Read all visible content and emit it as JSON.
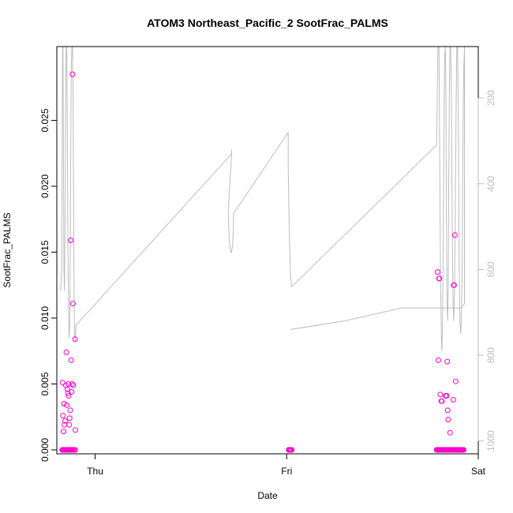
{
  "chart_data": {
    "type": "scatter",
    "title": "ATOM3 Northeast_Pacific_2 SootFrac_PALMS",
    "xlabel": "Date",
    "ylabel": "SootFrac_PALMS",
    "xlim": [
      -0.2,
      2.0
    ],
    "ylim": [
      -0.0003,
      0.0306
    ],
    "x_ticks": [
      {
        "value": 0,
        "label": "Thu"
      },
      {
        "value": 1,
        "label": "Fri"
      },
      {
        "value": 2,
        "label": "Sat"
      }
    ],
    "y_ticks": [
      {
        "value": 0.0,
        "label": "0.000"
      },
      {
        "value": 0.005,
        "label": "0.005"
      },
      {
        "value": 0.01,
        "label": "0.010"
      },
      {
        "value": 0.015,
        "label": "0.015"
      },
      {
        "value": 0.02,
        "label": "0.020"
      },
      {
        "value": 0.025,
        "label": "0.025"
      }
    ],
    "secondary_axis": {
      "side": "right",
      "reversed": true,
      "lim": [
        80,
        1030
      ],
      "color": "#bdbdbd",
      "ticks": [
        {
          "value": 200,
          "label": "200"
        },
        {
          "value": 400,
          "label": "400"
        },
        {
          "value": 600,
          "label": "600"
        },
        {
          "value": 800,
          "label": "800"
        },
        {
          "value": 1000,
          "label": "1000"
        }
      ]
    },
    "series": [
      {
        "kind": "points",
        "color": "#ff00cc",
        "points": [
          [
            -0.17,
            0.0051
          ],
          [
            -0.168,
            0.0026
          ],
          [
            -0.165,
            0.0014
          ],
          [
            -0.162,
            0.0035
          ],
          [
            -0.16,
            0.0019
          ],
          [
            -0.157,
            0.0022
          ],
          [
            -0.153,
            0.0049
          ],
          [
            -0.15,
            0.0074
          ],
          [
            -0.148,
            0.0034
          ],
          [
            -0.145,
            0.0046
          ],
          [
            -0.142,
            0.0043
          ],
          [
            -0.14,
            0.005
          ],
          [
            -0.138,
            0.0041
          ],
          [
            -0.135,
            0.0019
          ],
          [
            -0.133,
            0.0024
          ],
          [
            -0.13,
            0.003
          ],
          [
            -0.127,
            0.0159
          ],
          [
            -0.125,
            0.0068
          ],
          [
            -0.123,
            0.0044
          ],
          [
            -0.12,
            0.005
          ],
          [
            -0.118,
            0.0285
          ],
          [
            -0.116,
            0.0111
          ],
          [
            -0.114,
            0.0049
          ],
          [
            -0.105,
            0.0084
          ],
          [
            -0.103,
            0.0015
          ],
          [
            -0.172,
            0.0
          ],
          [
            -0.168,
            0.0
          ],
          [
            -0.164,
            0.0
          ],
          [
            -0.16,
            0.0
          ],
          [
            -0.156,
            0.0
          ],
          [
            -0.152,
            0.0
          ],
          [
            -0.148,
            0.0
          ],
          [
            -0.144,
            0.0
          ],
          [
            -0.14,
            0.0
          ],
          [
            -0.136,
            0.0
          ],
          [
            -0.13,
            0.0
          ],
          [
            -0.126,
            0.0
          ],
          [
            -0.122,
            0.0
          ],
          [
            -0.118,
            0.0
          ],
          [
            -0.114,
            0.0
          ],
          [
            -0.108,
            0.0
          ],
          [
            -0.104,
            0.0
          ],
          [
            1.01,
            0.0
          ],
          [
            1.014,
            0.0
          ],
          [
            1.018,
            0.0
          ],
          [
            1.022,
            0.0
          ],
          [
            1.026,
            0.0
          ],
          [
            1.788,
            0.0135
          ],
          [
            1.792,
            0.0068
          ],
          [
            1.795,
            0.013
          ],
          [
            1.797,
            0.013
          ],
          [
            1.802,
            0.0042
          ],
          [
            1.807,
            0.0037
          ],
          [
            1.81,
            0.0037
          ],
          [
            1.83,
            0.0041
          ],
          [
            1.835,
            0.0041
          ],
          [
            1.838,
            0.0067
          ],
          [
            1.84,
            0.003
          ],
          [
            1.843,
            0.0023
          ],
          [
            1.853,
            0.0013
          ],
          [
            1.855,
            0.0
          ],
          [
            1.87,
            0.0038
          ],
          [
            1.872,
            0.0125
          ],
          [
            1.874,
            0.0125
          ],
          [
            1.878,
            0.0163
          ],
          [
            1.882,
            0.0052
          ],
          [
            1.782,
            0.0
          ],
          [
            1.786,
            0.0
          ],
          [
            1.79,
            0.0
          ],
          [
            1.794,
            0.0
          ],
          [
            1.798,
            0.0
          ],
          [
            1.802,
            0.0
          ],
          [
            1.806,
            0.0
          ],
          [
            1.81,
            0.0
          ],
          [
            1.814,
            0.0
          ],
          [
            1.818,
            0.0
          ],
          [
            1.822,
            0.0
          ],
          [
            1.826,
            0.0
          ],
          [
            1.83,
            0.0
          ],
          [
            1.834,
            0.0
          ],
          [
            1.838,
            0.0
          ],
          [
            1.842,
            0.0
          ],
          [
            1.846,
            0.0
          ],
          [
            1.85,
            0.0
          ],
          [
            1.856,
            0.0
          ],
          [
            1.86,
            0.0
          ],
          [
            1.864,
            0.0
          ],
          [
            1.868,
            0.0
          ],
          [
            1.872,
            0.0
          ],
          [
            1.876,
            0.0
          ],
          [
            1.88,
            0.0
          ],
          [
            1.884,
            0.0
          ],
          [
            1.888,
            0.0
          ],
          [
            1.892,
            0.0
          ],
          [
            1.896,
            0.0
          ],
          [
            1.9,
            0.0
          ],
          [
            1.904,
            0.0
          ],
          [
            1.908,
            0.0
          ],
          [
            1.912,
            0.0
          ],
          [
            1.916,
            0.0
          ],
          [
            1.92,
            0.0
          ],
          [
            1.924,
            0.0
          ]
        ]
      },
      {
        "kind": "line",
        "axis": "secondary",
        "color": "#bdbdbd",
        "points": [
          [
            -0.18,
            650
          ],
          [
            -0.175,
            600
          ],
          [
            -0.172,
            300
          ],
          [
            -0.17,
            80
          ],
          [
            -0.168,
            80
          ],
          [
            -0.166,
            300
          ],
          [
            -0.163,
            600
          ],
          [
            -0.16,
            650
          ],
          [
            -0.157,
            500
          ],
          [
            -0.154,
            200
          ],
          [
            -0.151,
            80
          ],
          [
            -0.148,
            80
          ],
          [
            -0.145,
            300
          ],
          [
            -0.142,
            560
          ],
          [
            -0.139,
            680
          ],
          [
            -0.136,
            760
          ],
          [
            -0.133,
            730
          ],
          [
            -0.13,
            560
          ],
          [
            -0.127,
            300
          ],
          [
            -0.124,
            120
          ],
          [
            -0.121,
            80
          ],
          [
            -0.118,
            80
          ],
          [
            -0.115,
            200
          ],
          [
            -0.112,
            500
          ],
          [
            -0.109,
            700
          ],
          [
            -0.106,
            760
          ],
          [
            -0.104,
            770
          ],
          [
            -0.1,
            730
          ],
          [
            0.7125,
            330
          ],
          [
            0.712,
            320
          ],
          [
            0.712,
            330
          ],
          [
            0.71,
            350
          ],
          [
            0.7,
            420
          ],
          [
            0.695,
            470
          ],
          [
            0.7,
            530
          ],
          [
            0.707,
            560
          ],
          [
            0.712,
            560
          ],
          [
            0.718,
            540
          ],
          [
            0.722,
            500
          ],
          [
            0.722,
            470
          ],
          [
            1.008,
            280
          ],
          [
            1.008,
            360
          ],
          [
            1.01,
            420
          ],
          [
            1.012,
            480
          ],
          [
            1.014,
            520
          ],
          [
            1.016,
            560
          ],
          [
            1.018,
            590
          ],
          [
            1.02,
            610
          ],
          [
            1.022,
            620
          ],
          [
            1.024,
            630
          ],
          [
            1.026,
            640
          ],
          [
            1.782,
            310
          ],
          [
            1.784,
            250
          ],
          [
            1.786,
            180
          ],
          [
            1.788,
            120
          ],
          [
            1.79,
            80
          ],
          [
            1.792,
            80
          ],
          [
            1.795,
            80
          ],
          [
            1.798,
            300
          ],
          [
            1.801,
            500
          ],
          [
            1.804,
            650
          ],
          [
            1.807,
            750
          ],
          [
            1.81,
            790
          ],
          [
            1.813,
            740
          ],
          [
            1.816,
            600
          ],
          [
            1.819,
            400
          ],
          [
            1.822,
            200
          ],
          [
            1.825,
            100
          ],
          [
            1.828,
            80
          ],
          [
            1.831,
            200
          ],
          [
            1.834,
            500
          ],
          [
            1.837,
            680
          ],
          [
            1.84,
            720
          ],
          [
            1.843,
            650
          ],
          [
            1.846,
            400
          ],
          [
            1.849,
            200
          ],
          [
            1.852,
            80
          ],
          [
            1.856,
            80
          ],
          [
            1.86,
            200
          ],
          [
            1.864,
            500
          ],
          [
            1.868,
            680
          ],
          [
            1.872,
            720
          ],
          [
            1.876,
            650
          ],
          [
            1.88,
            450
          ],
          [
            1.884,
            250
          ],
          [
            1.888,
            80
          ],
          [
            1.892,
            80
          ],
          [
            1.896,
            250
          ],
          [
            1.9,
            550
          ],
          [
            1.904,
            720
          ],
          [
            1.908,
            750
          ],
          [
            1.912,
            720
          ],
          [
            1.916,
            600
          ],
          [
            1.918,
            430
          ],
          [
            1.92,
            300
          ],
          [
            1.922,
            200
          ],
          [
            1.924,
            130
          ],
          [
            1.926,
            110
          ],
          [
            1.928,
            80
          ],
          [
            1.928,
            680
          ],
          [
            1.912,
            690
          ],
          [
            1.6,
            690
          ],
          [
            1.3,
            720
          ],
          [
            1.02,
            740
          ]
        ]
      }
    ]
  }
}
